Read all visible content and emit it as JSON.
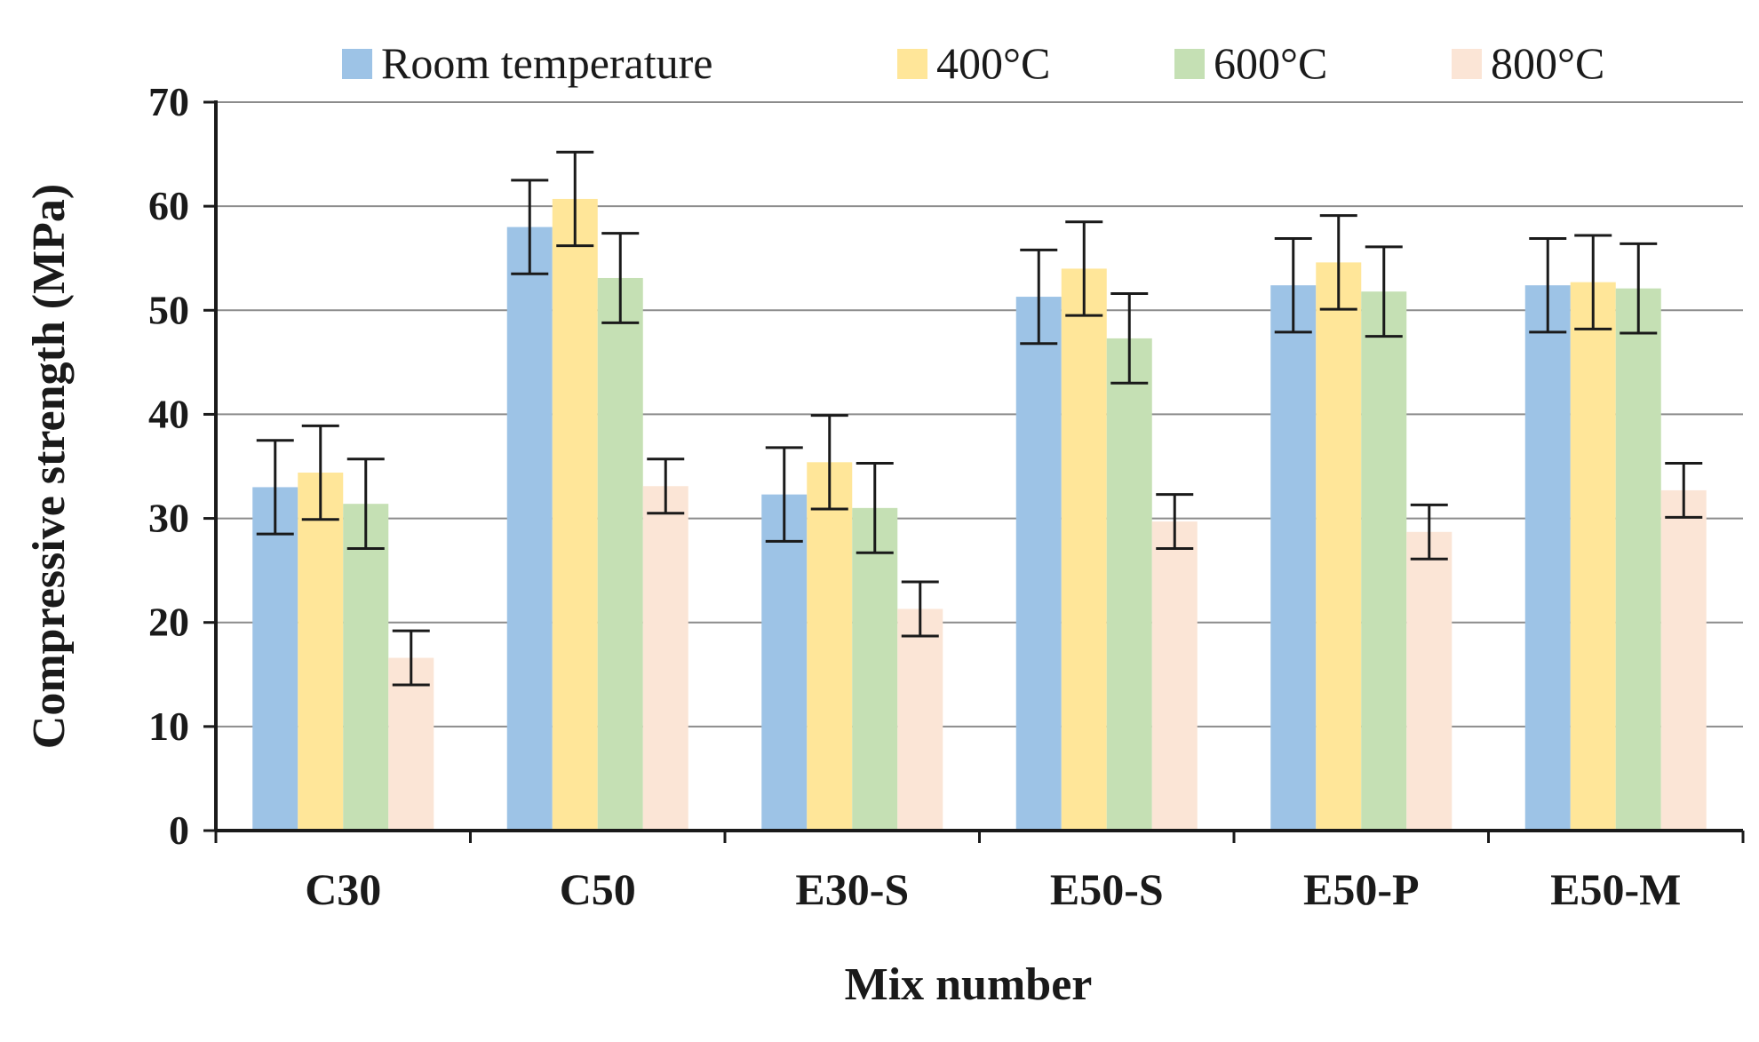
{
  "chart_data": {
    "type": "bar",
    "title": "",
    "xlabel": "Mix number",
    "ylabel": "Compressive strength (MPa)",
    "ylim": [
      0,
      70
    ],
    "yticks": [
      0,
      10,
      20,
      30,
      40,
      50,
      60,
      70
    ],
    "grid": true,
    "legend_position": "top",
    "categories": [
      "C30",
      "C50",
      "E30-S",
      "E50-S",
      "E50-P",
      "E50-M"
    ],
    "series": [
      {
        "name": "Room temperature",
        "color": "#9DC3E6",
        "values": [
          33.0,
          58.0,
          32.3,
          51.3,
          52.4,
          52.4
        ],
        "errors": [
          4.5,
          4.5,
          4.5,
          4.5,
          4.5,
          4.5
        ]
      },
      {
        "name": "400°C",
        "color": "#FFE699",
        "values": [
          34.4,
          60.7,
          35.4,
          54.0,
          54.6,
          52.7
        ],
        "errors": [
          4.5,
          4.5,
          4.5,
          4.5,
          4.5,
          4.5
        ]
      },
      {
        "name": "600°C",
        "color": "#C5E0B4",
        "values": [
          31.4,
          53.1,
          31.0,
          47.3,
          51.8,
          52.1
        ],
        "errors": [
          4.3,
          4.3,
          4.3,
          4.3,
          4.3,
          4.3
        ]
      },
      {
        "name": "800°C",
        "color": "#FBE5D6",
        "values": [
          16.6,
          33.1,
          21.3,
          29.7,
          28.7,
          32.7
        ],
        "errors": [
          2.6,
          2.6,
          2.6,
          2.6,
          2.6,
          2.6
        ]
      }
    ]
  }
}
